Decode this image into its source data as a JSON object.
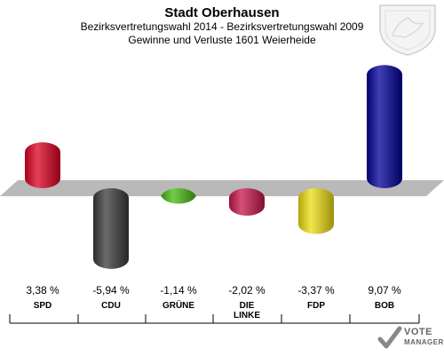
{
  "header": {
    "title": "Stadt Oberhausen",
    "subtitle": "Bezirksvertretungswahl 2014 - Bezirksvertretungswahl 2009",
    "subtitle2": "Gewinne und Verluste 1601 Weierheide"
  },
  "chart_data": {
    "type": "bar",
    "categories": [
      "SPD",
      "CDU",
      "GRÜNE",
      "DIE LINKE",
      "FDP",
      "BOB"
    ],
    "category_lines": [
      [
        "SPD"
      ],
      [
        "CDU"
      ],
      [
        "GRÜNE"
      ],
      [
        "DIE",
        "LINKE"
      ],
      [
        "FDP"
      ],
      [
        "BOB"
      ]
    ],
    "values": [
      3.38,
      -5.94,
      -1.14,
      -2.02,
      -3.37,
      9.07
    ],
    "value_labels": [
      "3,38 %",
      "-5,94 %",
      "-1,14 %",
      "-2,02 %",
      "-3,37 %",
      "9,07 %"
    ],
    "colors": [
      "#dd0022",
      "#3a3a3a",
      "#44bb11",
      "#c8154b",
      "#eedd11",
      "#000099"
    ],
    "ylim": [
      -6.5,
      9.5
    ]
  },
  "logo": {
    "line1": "VOTE",
    "line2": "MANAGER"
  }
}
